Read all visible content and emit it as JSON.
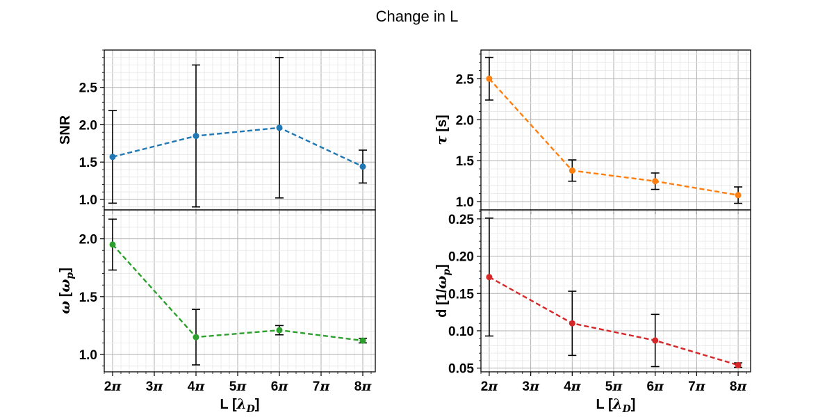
{
  "figure": {
    "title": "Change in L"
  },
  "chart_data": [
    {
      "id": "snr",
      "type": "line",
      "position": "top-left",
      "x_tick_labels": [],
      "xlabel": "",
      "ylabel": "SNR",
      "ylim": [
        0.86,
        3.0
      ],
      "xlim": [
        1.8,
        8.3
      ],
      "y_ticks": [
        1.0,
        1.5,
        2.0,
        2.5
      ],
      "y_tick_labels": [
        "1.0",
        "1.5",
        "2.0",
        "2.5"
      ],
      "grid": true,
      "color": "#1f77b4",
      "line_style": "dashed",
      "x": [
        2,
        4,
        6,
        8
      ],
      "values": [
        1.57,
        1.85,
        1.96,
        1.44
      ],
      "error": [
        0.62,
        0.95,
        0.94,
        0.22
      ]
    },
    {
      "id": "tau",
      "type": "line",
      "position": "top-right",
      "x_tick_labels": [],
      "xlabel": "",
      "ylabel": "τ [s]",
      "ylim": [
        0.9,
        2.85
      ],
      "xlim": [
        1.8,
        8.3
      ],
      "y_ticks": [
        1.0,
        1.5,
        2.0,
        2.5
      ],
      "y_tick_labels": [
        "1.0",
        "1.5",
        "2.0",
        "2.5"
      ],
      "grid": true,
      "color": "#ff7f0e",
      "line_style": "dashed",
      "x": [
        2,
        4,
        6,
        8
      ],
      "values": [
        2.5,
        1.38,
        1.25,
        1.08
      ],
      "error": [
        0.26,
        0.13,
        0.1,
        0.1
      ]
    },
    {
      "id": "omega",
      "type": "line",
      "position": "bottom-left",
      "x_tick_labels": [
        "2π",
        "3π",
        "4π",
        "5π",
        "6π",
        "7π",
        "8π"
      ],
      "xlabel": "L [λD]",
      "ylabel": "ω [ωp]",
      "ylim": [
        0.85,
        2.25
      ],
      "xlim": [
        1.8,
        8.3
      ],
      "y_ticks": [
        1.0,
        1.5,
        2.0
      ],
      "y_tick_labels": [
        "1.0",
        "1.5",
        "2.0"
      ],
      "grid": true,
      "color": "#2ca02c",
      "line_style": "dashed",
      "x": [
        2,
        4,
        6,
        8
      ],
      "values": [
        1.95,
        1.15,
        1.21,
        1.12
      ],
      "error": [
        0.22,
        0.24,
        0.04,
        0.02
      ]
    },
    {
      "id": "d",
      "type": "line",
      "position": "bottom-right",
      "x_tick_labels": [
        "2π",
        "3π",
        "4π",
        "5π",
        "6π",
        "7π",
        "8π"
      ],
      "xlabel": "L [λD]",
      "ylabel": "d [1/ωp]",
      "ylim": [
        0.045,
        0.262
      ],
      "xlim": [
        1.8,
        8.3
      ],
      "y_ticks": [
        0.05,
        0.1,
        0.15,
        0.2,
        0.25
      ],
      "y_tick_labels": [
        "0.05",
        "0.10",
        "0.15",
        "0.20",
        "0.25"
      ],
      "grid": true,
      "color": "#d62728",
      "line_style": "dashed",
      "x": [
        2,
        4,
        6,
        8
      ],
      "values": [
        0.172,
        0.11,
        0.087,
        0.054
      ],
      "error": [
        0.079,
        0.043,
        0.035,
        0.003
      ]
    }
  ]
}
